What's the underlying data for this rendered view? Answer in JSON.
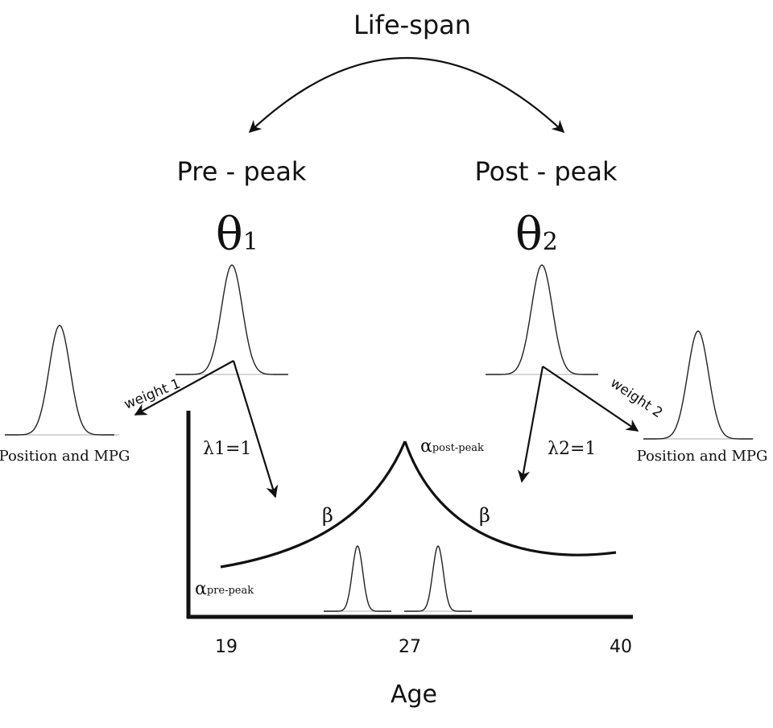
{
  "title": "Life-span",
  "pre_peak": {
    "label": "Pre - peak",
    "theta": "θ",
    "theta_sub": "1",
    "lambda": "λ",
    "lambda_eq": "1=1",
    "weight": "weight 1"
  },
  "post_peak": {
    "label": "Post - peak",
    "theta": "θ",
    "theta_sub": "2",
    "lambda": "λ",
    "lambda_eq": "2=1",
    "weight": "weight 2"
  },
  "position_label": "Position and MPG",
  "alpha_symbol": "α",
  "alpha_pre": "pre-peak",
  "alpha_post": "post-peak",
  "beta_symbol": "β",
  "x_ticks": [
    "19",
    "27",
    "40"
  ],
  "x_axis_label": "Age"
}
